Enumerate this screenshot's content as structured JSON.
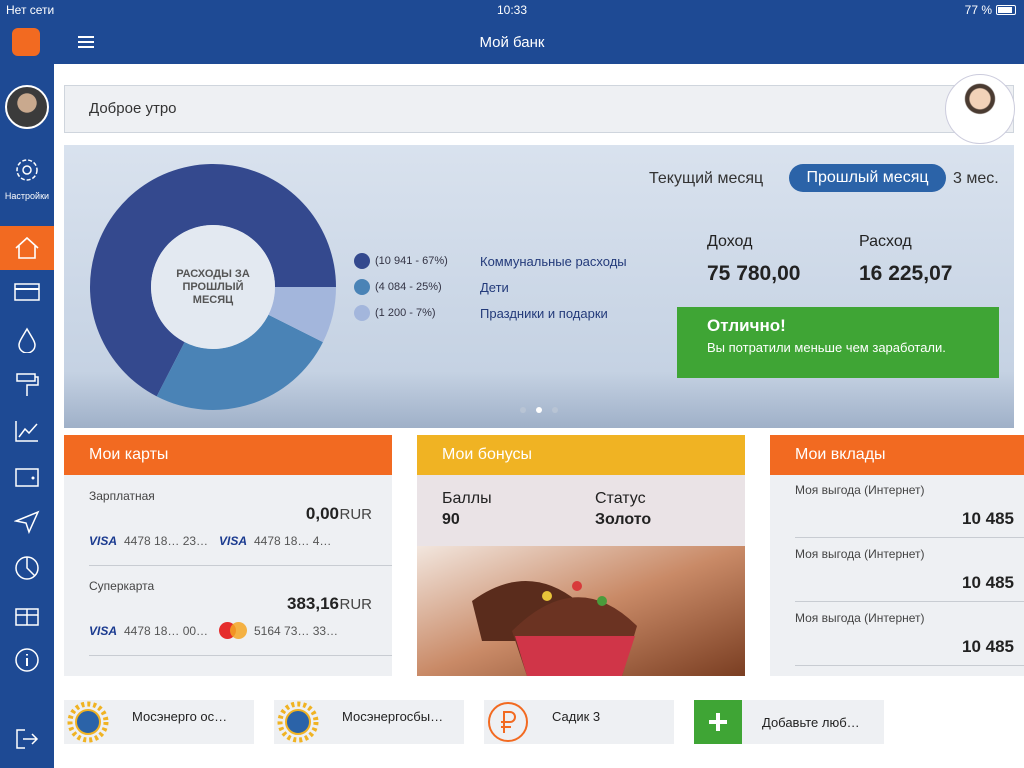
{
  "status_bar": {
    "network": "Нет сети",
    "time": "10:33",
    "battery": "77 %"
  },
  "header": {
    "title": "Мой банк"
  },
  "sidebar": {
    "settings": "Настройки"
  },
  "greeting": "Доброе утро",
  "period_tabs": [
    "Текущий месяц",
    "Прошлый месяц",
    "3 мес."
  ],
  "spending_chart": {
    "title": "РАСХОДЫ ЗА ПРОШЛЫЙ МЕСЯЦ",
    "segments": [
      {
        "amount": 10941,
        "percent": 67,
        "label": "(10 941 - 67%)",
        "name": "Коммунальные расходы",
        "color": "#34498e"
      },
      {
        "amount": 4084,
        "percent": 25,
        "label": "(4 084 - 25%)",
        "name": "Дети",
        "color": "#4a83b6"
      },
      {
        "amount": 1200,
        "percent": 7,
        "label": "(1 200 - 7%)",
        "name": "Праздники и подарки",
        "color": "#a3b6dc"
      }
    ]
  },
  "summary": {
    "income_label": "Доход",
    "income": "75 780,00",
    "expense_label": "Расход",
    "expense": "16 225,07",
    "verdict_title": "Отлично!",
    "verdict_text": "Вы потратили меньше чем заработали."
  },
  "cards": {
    "title": "Мои карты",
    "items": [
      {
        "name": "Зарплатная",
        "balance": "0,00",
        "currency": "RUR",
        "cards": [
          {
            "brand": "VISA",
            "number": "4478 18… 23…"
          },
          {
            "brand": "VISA",
            "number": "4478 18… 4…"
          }
        ]
      },
      {
        "name": "Суперкарта",
        "balance": "383,16",
        "currency": "RUR",
        "cards": [
          {
            "brand": "VISA",
            "number": "4478 18… 00…"
          },
          {
            "brand": "MasterCard",
            "number": "5164 73… 33…"
          }
        ]
      }
    ]
  },
  "bonuses": {
    "title": "Мои бонусы",
    "points_label": "Баллы",
    "points": "90",
    "status_label": "Статус",
    "status": "Золото"
  },
  "deposits": {
    "title": "Мои вклады",
    "items": [
      {
        "name": "Моя выгода (Интернет)",
        "amount": "10 485"
      },
      {
        "name": "Моя выгода (Интернет)",
        "amount": "10 485"
      },
      {
        "name": "Моя выгода (Интернет)",
        "amount": "10 485"
      }
    ]
  },
  "favorites": [
    "Мосэнерго ос…",
    "Мосэнергосбы…",
    "Садик 3",
    "Добавьте люб…"
  ]
}
